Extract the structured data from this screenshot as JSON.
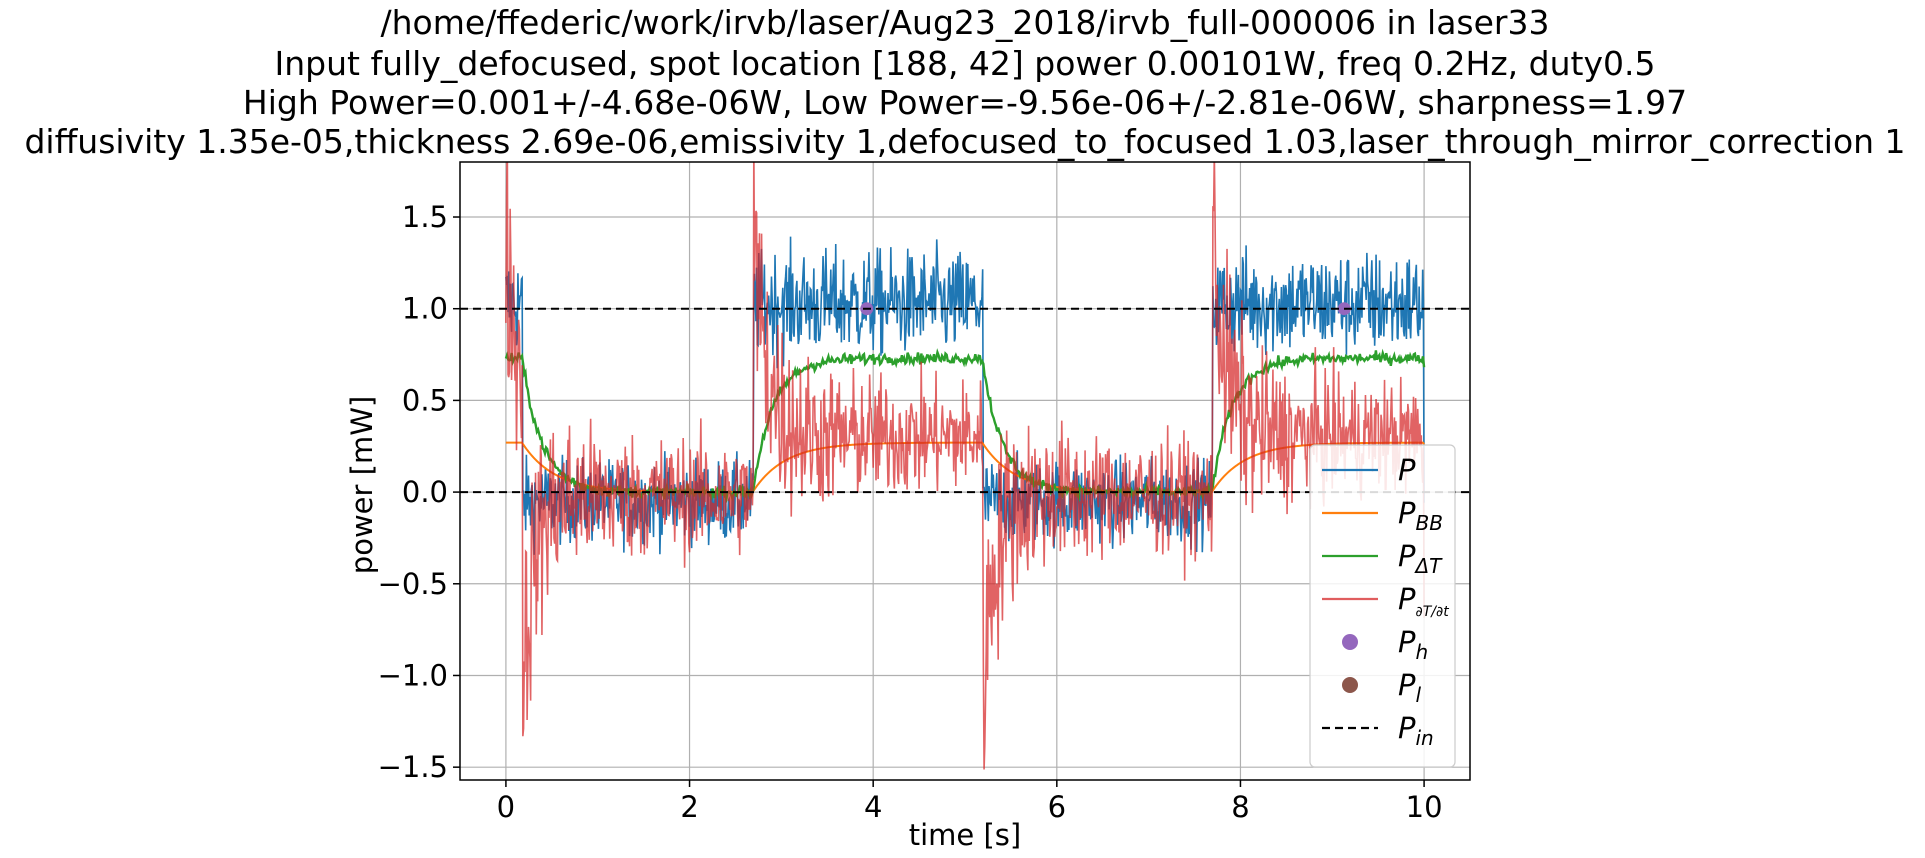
{
  "chart_data": {
    "type": "line",
    "title_lines": [
      "/home/ffederic/work/irvb/laser/Aug23_2018/irvb_full-000006 in laser33",
      "Input fully_defocused, spot location [188, 42] power 0.00101W, freq 0.2Hz, duty0.5",
      "High Power=0.001+/-4.68e-06W, Low Power=-9.56e-06+/-2.81e-06W, sharpness=1.97",
      "diffusivity 1.35e-05,thickness 2.69e-06,emissivity 1,defocused_to_focused 1.03,laser_through_mirror_correction 1"
    ],
    "xlabel": "time [s]",
    "ylabel": "power [mW]",
    "xlim": [
      -0.5,
      10.5
    ],
    "ylim": [
      -1.57,
      1.8
    ],
    "xticks": [
      0,
      2,
      4,
      6,
      8,
      10
    ],
    "xtick_labels": [
      "0",
      "2",
      "4",
      "6",
      "8",
      "10"
    ],
    "yticks": [
      -1.5,
      -1.0,
      -0.5,
      0.0,
      0.5,
      1.0,
      1.5
    ],
    "ytick_labels": [
      "−1.5",
      "−1.0",
      "−0.5",
      "0.0",
      "0.5",
      "1.0",
      "1.5"
    ],
    "grid": true,
    "legend_position": "lower-right",
    "on_intervals": [
      [
        0,
        0.18
      ],
      [
        2.7,
        5.2
      ],
      [
        7.7,
        10.0
      ]
    ],
    "series": [
      {
        "name": "P",
        "legend_main": "P",
        "legend_sub": "",
        "color": "#1f77b4",
        "style": "noisy",
        "on_mean": 1.03,
        "off_mean": -0.05,
        "noise_on": 0.28,
        "noise_off": 0.22,
        "n": 1300
      },
      {
        "name": "P_BB",
        "legend_main": "P",
        "legend_sub": "BB",
        "color": "#ff7f0e",
        "style": "smooth",
        "high": 0.27,
        "low": 0.0,
        "tau": 0.35
      },
      {
        "name": "P_ΔT",
        "legend_main": "P",
        "legend_sub": "ΔT",
        "color": "#2ca02c",
        "style": "smooth-noisy",
        "high": 0.73,
        "low": 0.0,
        "tau": 0.22,
        "noise": 0.03
      },
      {
        "name": "P_∂T/∂t",
        "legend_main": "P",
        "legend_sub": "∂T/∂t",
        "color": "#d62728",
        "style": "derivative",
        "on_mean": 0.3,
        "off_mean": -0.02,
        "spike_up": 1.38,
        "spike_down": -1.4,
        "noise": 0.3,
        "n": 1300
      },
      {
        "name": "P_h",
        "legend_main": "P",
        "legend_sub": "h",
        "color": "#9467bd",
        "style": "points",
        "points": [
          [
            3.93,
            1.0
          ],
          [
            9.13,
            1.0
          ]
        ]
      },
      {
        "name": "P_l",
        "legend_main": "P",
        "legend_sub": "l",
        "color": "#8c564b",
        "style": "points",
        "points": []
      },
      {
        "name": "P_in",
        "legend_main": "P",
        "legend_sub": "in",
        "color": "#000000",
        "style": "hlines",
        "values": [
          1.0,
          0.0
        ]
      }
    ]
  }
}
